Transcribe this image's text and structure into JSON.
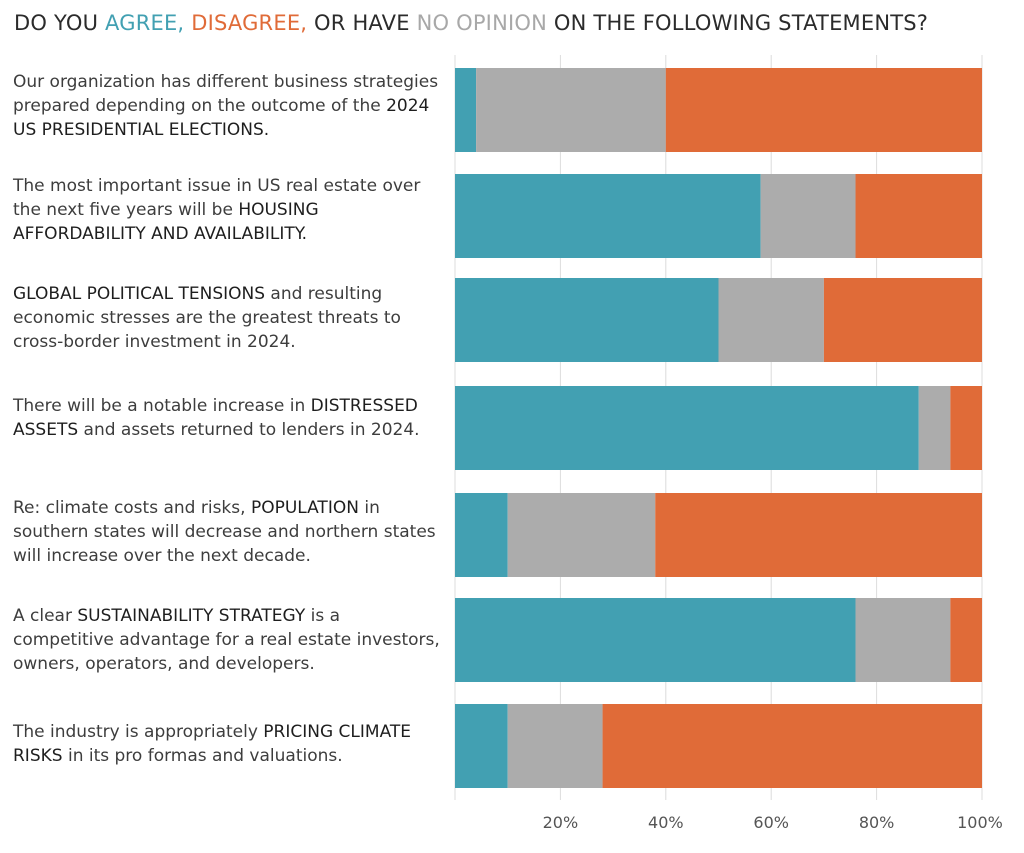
{
  "title": {
    "part1": "DO YOU ",
    "agree": "AGREE,",
    "space1": " ",
    "disagree": "DISAGREE,",
    "part2": " OR HAVE ",
    "noop": "NO OPINION",
    "part3": " ON THE FOLLOWING STATEMENTS?"
  },
  "statements": [
    {
      "pre": "Our organization has different business strategies prepared depending on the outcome of the ",
      "hl": "2024 US PRESIDENTIAL ELECTIONS.",
      "post": ""
    },
    {
      "pre": "The most important issue in US real estate over the next five years will be ",
      "hl": "HOUSING AFFORDABILITY AND AVAILABILITY.",
      "post": ""
    },
    {
      "pre": "",
      "hl": "GLOBAL POLITICAL TENSIONS",
      "post": " and resulting economic stresses are the greatest threats to cross-border investment in 2024."
    },
    {
      "pre": "There will be a notable increase in ",
      "hl": "DISTRESSED ASSETS",
      "post": " and assets returned to lenders in 2024."
    },
    {
      "pre": "Re: climate costs and risks, ",
      "hl": "POPULATION",
      "post": " in southern states will decrease and northern states will increase over the next decade."
    },
    {
      "pre": "A clear ",
      "hl": "SUSTAINABILITY STRATEGY",
      "post": " is a competitive advantage for a real estate investors, owners, operators, and developers."
    },
    {
      "pre": "The industry is appropriately ",
      "hl": "PRICING CLIMATE RISKS",
      "post": " in its pro formas and valuations."
    }
  ],
  "colors": {
    "agree": "#42a0b2",
    "no_opinion": "#acacac",
    "disagree": "#e06b38",
    "grid": "#dcdcdc",
    "axis_text": "#555555"
  },
  "chart_data": {
    "type": "bar",
    "orientation": "horizontal",
    "stacked": true,
    "categories": [
      "Our organization has different business strategies prepared depending on the outcome of the 2024 US PRESIDENTIAL ELECTIONS.",
      "The most important issue in US real estate over the next five years will be HOUSING AFFORDABILITY AND AVAILABILITY.",
      "GLOBAL POLITICAL TENSIONS and resulting economic stresses are the greatest threats to cross-border investment in 2024.",
      "There will be a notable increase in DISTRESSED ASSETS and assets returned to lenders in 2024.",
      "Re: climate costs and risks, POPULATION in southern states will decrease and northern states will increase over the next decade.",
      "A clear SUSTAINABILITY STRATEGY is a competitive advantage for a real estate investors, owners, operators, and developers.",
      "The industry is appropriately PRICING CLIMATE RISKS in its pro formas and valuations."
    ],
    "series": [
      {
        "name": "AGREE",
        "values": [
          4,
          58,
          50,
          88,
          10,
          76,
          10
        ]
      },
      {
        "name": "NO OPINION",
        "values": [
          36,
          18,
          20,
          6,
          28,
          18,
          18
        ]
      },
      {
        "name": "DISAGREE",
        "values": [
          60,
          24,
          30,
          6,
          62,
          6,
          72
        ]
      }
    ],
    "x_ticks": [
      "20%",
      "40%",
      "60%",
      "80%",
      "100%"
    ],
    "x_tick_values": [
      20,
      40,
      60,
      80,
      100
    ],
    "xlim": [
      0,
      100
    ],
    "grid": true,
    "legend": "title"
  }
}
